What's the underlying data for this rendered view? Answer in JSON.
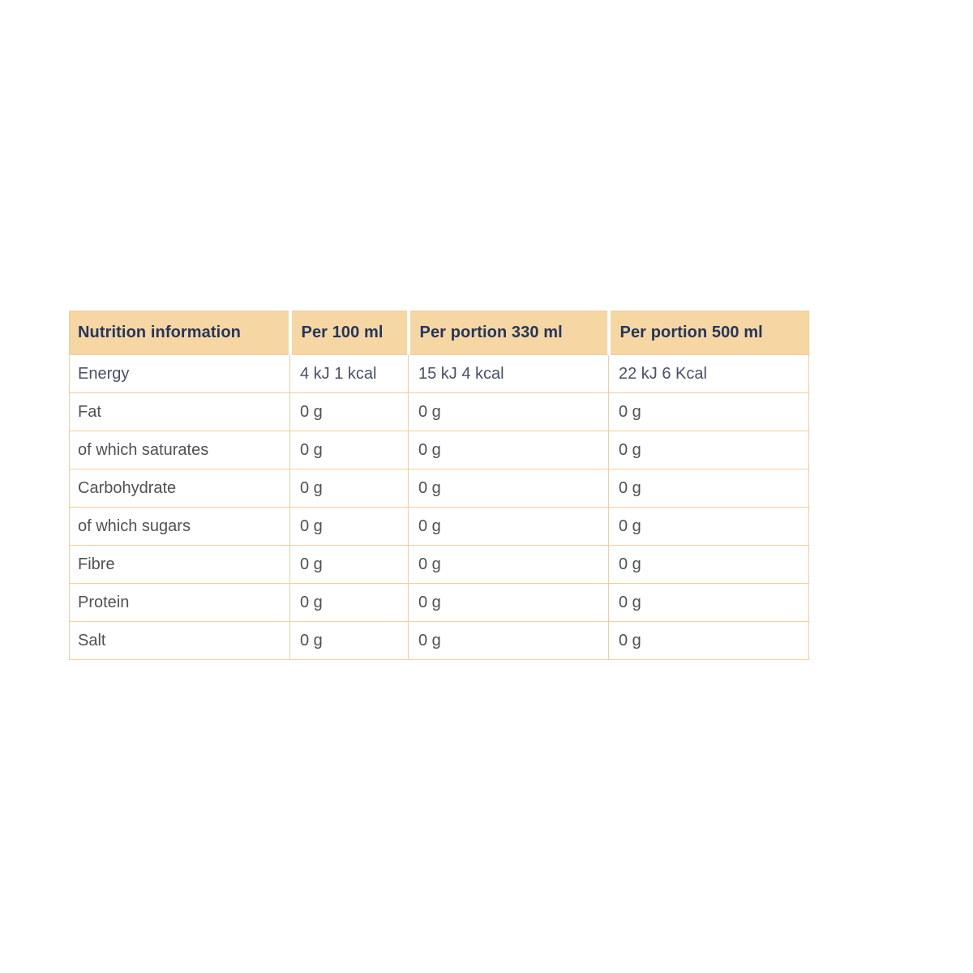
{
  "table": {
    "title": "Nutrition information",
    "columns": [
      "Nutrition information",
      "Per 100 ml",
      "Per portion 330 ml",
      "Per portion 500 ml"
    ],
    "rows": [
      {
        "label": "Energy",
        "values": [
          "4 kJ 1 kcal",
          "15 kJ 4 kcal",
          "22 kJ 6 Kcal"
        ]
      },
      {
        "label": "Fat",
        "values": [
          "0 g",
          "0 g",
          "0 g"
        ]
      },
      {
        "label": "of which saturates",
        "values": [
          "0 g",
          "0 g",
          "0 g"
        ]
      },
      {
        "label": "Carbohydrate",
        "values": [
          "0 g",
          "0 g",
          "0 g"
        ]
      },
      {
        "label": "of which sugars",
        "values": [
          "0 g",
          "0 g",
          "0 g"
        ]
      },
      {
        "label": "Fibre",
        "values": [
          "0 g",
          "0 g",
          "0 g"
        ]
      },
      {
        "label": "Protein",
        "values": [
          "0 g",
          "0 g",
          "0 g"
        ]
      },
      {
        "label": "Salt",
        "values": [
          "0 g",
          "0 g",
          "0 g"
        ]
      }
    ],
    "colors": {
      "header_background": "#f6d6a3",
      "header_text": "#23365c",
      "body_text": "#515153",
      "border": "#f2cf9b",
      "page_background": "#ffffff"
    }
  }
}
